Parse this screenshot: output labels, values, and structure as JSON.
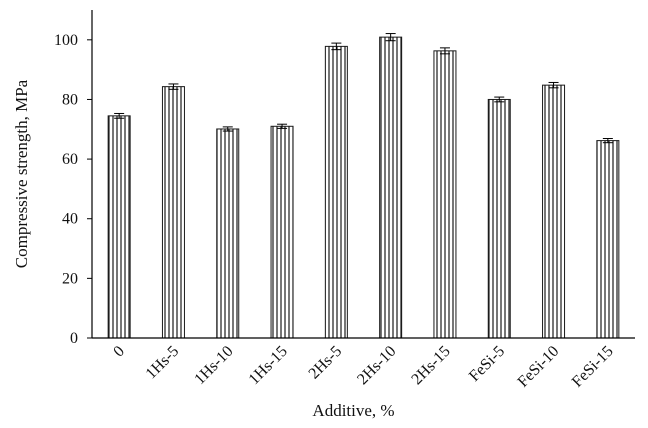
{
  "chart_data": {
    "type": "bar",
    "categories": [
      "0",
      "1Hs-5",
      "1Hs-10",
      "1Hs-15",
      "2Hs-5",
      "2Hs-10",
      "2Hs-15",
      "FeSi-5",
      "FeSi-10",
      "FeSi-15"
    ],
    "values": [
      74.5,
      84.3,
      70.1,
      71.0,
      97.8,
      100.9,
      96.3,
      80.0,
      84.8,
      66.2
    ],
    "errors": [
      0.8,
      0.9,
      0.7,
      0.7,
      1.1,
      1.2,
      1.0,
      0.8,
      0.9,
      0.7
    ],
    "title": "",
    "xlabel": "Additive, %",
    "ylabel": "Compressive strength, MPa",
    "ylim": [
      0,
      110
    ],
    "yticks": [
      0,
      20,
      40,
      60,
      80,
      100
    ],
    "grid": false,
    "bar_fill": "vertical-stripes",
    "bar_color": "#1a1a1a"
  }
}
